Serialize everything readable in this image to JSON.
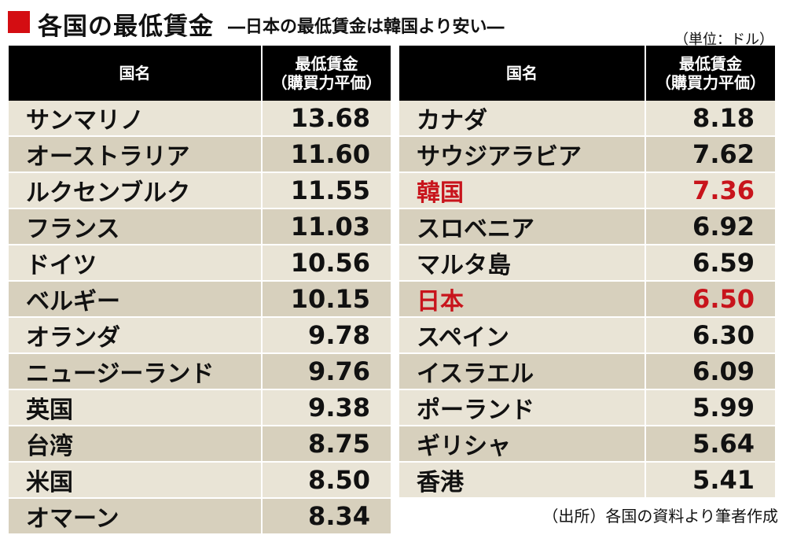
{
  "header": {
    "title": "各国の最低賃金",
    "subtitle": "―日本の最低賃金は韓国より安い―",
    "unit": "（単位：ドル）"
  },
  "columns": {
    "name": "国名",
    "value_line1": "最低賃金",
    "value_line2": "（購買力平価）"
  },
  "chart_data": {
    "type": "table",
    "title": "各国の最低賃金",
    "subtitle": "―日本の最低賃金は韓国より安い―",
    "unit": "（単位：ドル）",
    "columns": [
      "国名",
      "最低賃金（購買力平価）"
    ],
    "rows": [
      {
        "country": "サンマリノ",
        "value": 13.68
      },
      {
        "country": "オーストラリア",
        "value": 11.6
      },
      {
        "country": "ルクセンブルク",
        "value": 11.55
      },
      {
        "country": "フランス",
        "value": 11.03
      },
      {
        "country": "ドイツ",
        "value": 10.56
      },
      {
        "country": "ベルギー",
        "value": 10.15
      },
      {
        "country": "オランダ",
        "value": 9.78
      },
      {
        "country": "ニュージーランド",
        "value": 9.76
      },
      {
        "country": "英国",
        "value": 9.38
      },
      {
        "country": "台湾",
        "value": 8.75
      },
      {
        "country": "米国",
        "value": 8.5
      },
      {
        "country": "オマーン",
        "value": 8.34
      },
      {
        "country": "カナダ",
        "value": 8.18
      },
      {
        "country": "サウジアラビア",
        "value": 7.62
      },
      {
        "country": "韓国",
        "value": 7.36,
        "highlight": true
      },
      {
        "country": "スロベニア",
        "value": 6.92
      },
      {
        "country": "マルタ島",
        "value": 6.59
      },
      {
        "country": "日本",
        "value": 6.5,
        "highlight": true
      },
      {
        "country": "スペイン",
        "value": 6.3
      },
      {
        "country": "イスラエル",
        "value": 6.09
      },
      {
        "country": "ポーランド",
        "value": 5.99
      },
      {
        "country": "ギリシャ",
        "value": 5.64
      },
      {
        "country": "香港",
        "value": 5.41
      }
    ],
    "highlight_color": "#c8141c"
  },
  "source": "（出所）各国の資料より筆者作成"
}
